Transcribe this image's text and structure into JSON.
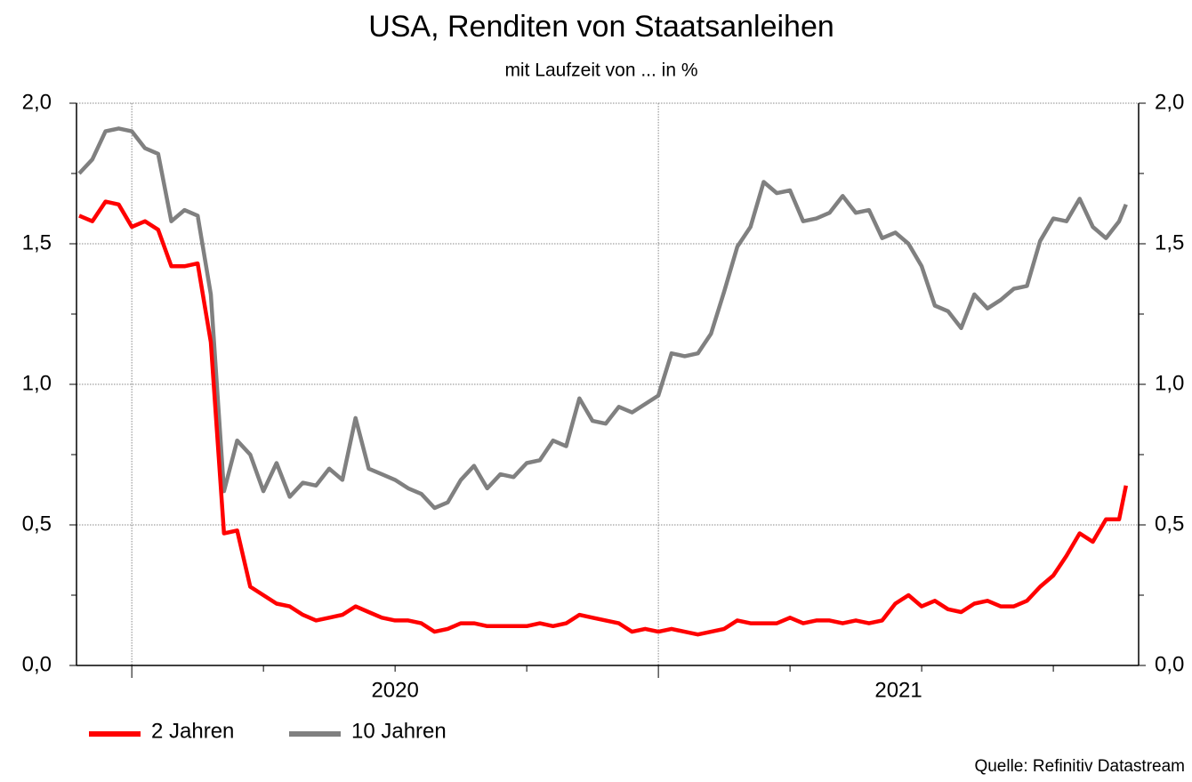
{
  "chart_data": {
    "type": "line",
    "title": "USA, Renditen von Staatsanleihen",
    "subtitle": "mit Laufzeit von ... in %",
    "source": "Quelle: Refinitiv Datastream",
    "x": [
      2019.9,
      2019.925,
      2019.95,
      2019.975,
      2020.0,
      2020.025,
      2020.05,
      2020.075,
      2020.1,
      2020.125,
      2020.15,
      2020.175,
      2020.2,
      2020.225,
      2020.25,
      2020.275,
      2020.3,
      2020.325,
      2020.35,
      2020.375,
      2020.4,
      2020.425,
      2020.45,
      2020.475,
      2020.5,
      2020.525,
      2020.55,
      2020.575,
      2020.6,
      2020.625,
      2020.65,
      2020.675,
      2020.7,
      2020.725,
      2020.75,
      2020.775,
      2020.8,
      2020.825,
      2020.85,
      2020.875,
      2020.9,
      2020.925,
      2020.95,
      2020.975,
      2021.0,
      2021.025,
      2021.05,
      2021.075,
      2021.1,
      2021.125,
      2021.15,
      2021.175,
      2021.2,
      2021.225,
      2021.25,
      2021.275,
      2021.3,
      2021.325,
      2021.35,
      2021.375,
      2021.4,
      2021.425,
      2021.45,
      2021.475,
      2021.5,
      2021.525,
      2021.55,
      2021.575,
      2021.6,
      2021.625,
      2021.65,
      2021.675,
      2021.7,
      2021.725,
      2021.75,
      2021.775,
      2021.8,
      2021.825,
      2021.85,
      2021.875,
      2021.888
    ],
    "series": [
      {
        "name": "2 Jahren",
        "color": "#ff0000",
        "values": [
          1.6,
          1.58,
          1.65,
          1.64,
          1.56,
          1.58,
          1.55,
          1.42,
          1.42,
          1.43,
          1.15,
          0.47,
          0.48,
          0.28,
          0.25,
          0.22,
          0.21,
          0.18,
          0.16,
          0.17,
          0.18,
          0.21,
          0.19,
          0.17,
          0.16,
          0.16,
          0.15,
          0.12,
          0.13,
          0.15,
          0.15,
          0.14,
          0.14,
          0.14,
          0.14,
          0.15,
          0.14,
          0.15,
          0.18,
          0.17,
          0.16,
          0.15,
          0.12,
          0.13,
          0.12,
          0.13,
          0.12,
          0.11,
          0.12,
          0.13,
          0.16,
          0.15,
          0.15,
          0.15,
          0.17,
          0.15,
          0.16,
          0.16,
          0.15,
          0.16,
          0.15,
          0.16,
          0.22,
          0.25,
          0.21,
          0.23,
          0.2,
          0.19,
          0.22,
          0.23,
          0.21,
          0.21,
          0.23,
          0.28,
          0.32,
          0.39,
          0.47,
          0.44,
          0.52,
          0.52,
          0.64
        ]
      },
      {
        "name": "10 Jahren",
        "color": "#808080",
        "values": [
          1.75,
          1.8,
          1.9,
          1.91,
          1.9,
          1.84,
          1.82,
          1.58,
          1.62,
          1.6,
          1.32,
          0.62,
          0.8,
          0.75,
          0.62,
          0.72,
          0.6,
          0.65,
          0.64,
          0.7,
          0.66,
          0.88,
          0.7,
          0.68,
          0.66,
          0.63,
          0.61,
          0.56,
          0.58,
          0.66,
          0.71,
          0.63,
          0.68,
          0.67,
          0.72,
          0.73,
          0.8,
          0.78,
          0.95,
          0.87,
          0.86,
          0.92,
          0.9,
          0.93,
          0.96,
          1.11,
          1.1,
          1.11,
          1.18,
          1.33,
          1.49,
          1.56,
          1.72,
          1.68,
          1.69,
          1.58,
          1.59,
          1.61,
          1.67,
          1.61,
          1.62,
          1.52,
          1.54,
          1.5,
          1.42,
          1.28,
          1.26,
          1.2,
          1.32,
          1.27,
          1.3,
          1.34,
          1.35,
          1.51,
          1.59,
          1.58,
          1.66,
          1.56,
          1.52,
          1.58,
          1.64
        ]
      }
    ],
    "xlim": [
      2019.895,
      2021.912
    ],
    "xticks": [
      {
        "value": 2020,
        "label": "2020"
      },
      {
        "value": 2021,
        "label": "2021"
      }
    ],
    "xminor_ticks": [
      2020.25,
      2020.5,
      2020.75,
      2021.25,
      2021.5,
      2021.75
    ],
    "ylim": [
      0,
      2
    ],
    "yticks": [
      {
        "value": 0,
        "label": "0,0"
      },
      {
        "value": 0.5,
        "label": "0,5"
      },
      {
        "value": 1,
        "label": "1,0"
      },
      {
        "value": 1.5,
        "label": "1,5"
      },
      {
        "value": 2,
        "label": "2,0"
      }
    ],
    "yminor_ticks": [
      0.25,
      0.75,
      1.25,
      1.75
    ],
    "y2lim": [
      0,
      2
    ],
    "y2ticks": [
      {
        "value": 0,
        "label": "0,0"
      },
      {
        "value": 0.5,
        "label": "0,5"
      },
      {
        "value": 1,
        "label": "1,0"
      },
      {
        "value": 1.5,
        "label": "1,5"
      },
      {
        "value": 2,
        "label": "2,0"
      }
    ],
    "grid": true,
    "legend": "bottom-left"
  }
}
